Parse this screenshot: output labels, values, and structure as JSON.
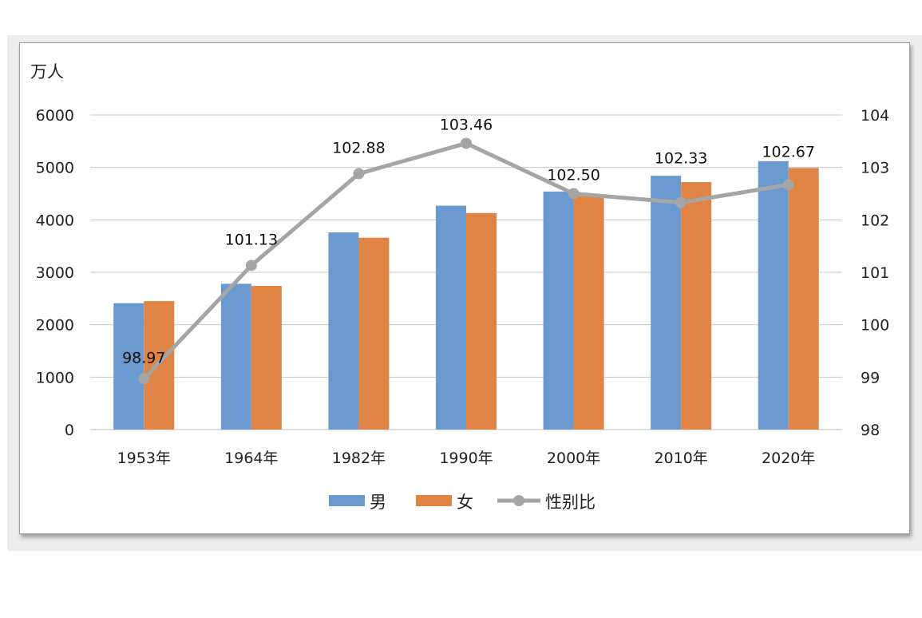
{
  "chart_data": {
    "type": "bar",
    "unit_label": "万人",
    "categories": [
      "1953年",
      "1964年",
      "1982年",
      "1990年",
      "2000年",
      "2010年",
      "2020年"
    ],
    "series": [
      {
        "name": "男",
        "type": "bar",
        "axis": "left",
        "color": "#6a99d0",
        "values": [
          2410,
          2780,
          3760,
          4270,
          4540,
          4840,
          5120
        ]
      },
      {
        "name": "女",
        "type": "bar",
        "axis": "left",
        "color": "#df8444",
        "values": [
          2450,
          2740,
          3660,
          4130,
          4450,
          4720,
          4990
        ]
      },
      {
        "name": "性别比",
        "type": "line",
        "axis": "right",
        "color": "#a5a5a5",
        "values": [
          98.97,
          101.13,
          102.88,
          103.46,
          102.5,
          102.33,
          102.67
        ]
      }
    ],
    "data_labels": [
      "98.97",
      "101.13",
      "102.88",
      "103.46",
      "102.50",
      "102.33",
      "102.67"
    ],
    "y_left": {
      "min": 0,
      "max": 6000,
      "ticks": [
        "0",
        "1000",
        "2000",
        "3000",
        "4000",
        "5000",
        "6000"
      ]
    },
    "y_right": {
      "min": 98,
      "max": 104,
      "ticks": [
        "98",
        "99",
        "100",
        "101",
        "102",
        "103",
        "104"
      ]
    },
    "grid": true,
    "legend_position": "bottom"
  }
}
